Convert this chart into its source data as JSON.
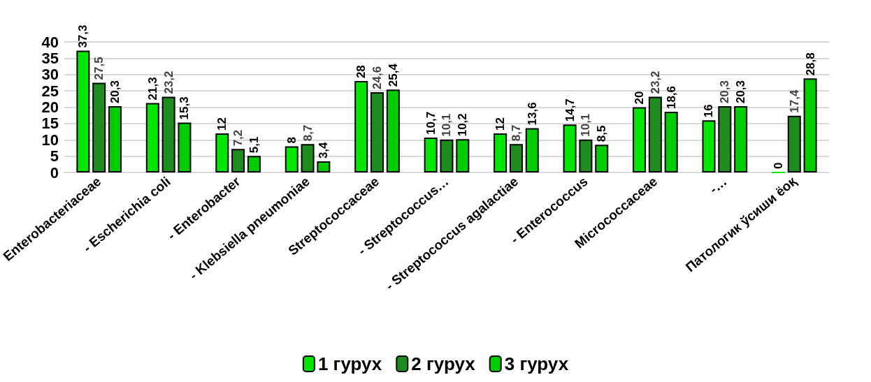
{
  "chart_data": {
    "type": "bar",
    "categories": [
      "Enterobacteriaceae",
      "- Escherichia coli",
      "- Enterobacter",
      "- Klebsiella pneumoniae",
      "Streptococcaceae",
      "- Streptococcus…",
      "- Streptococcus agalactiae",
      "- Enterococcus",
      "Micrococcaceae",
      "-…",
      "Патологик ўсиши ёоқ"
    ],
    "series": [
      {
        "name": "1 гурух",
        "color": "#00e600",
        "values": [
          37.3,
          21.3,
          12,
          8,
          28,
          10.7,
          12,
          14.7,
          20,
          16,
          0
        ],
        "value_labels": [
          "37,3",
          "21,3",
          "12",
          "8",
          "28",
          "10,7",
          "12",
          "14,7",
          "20",
          "16",
          "0"
        ]
      },
      {
        "name": "2 гурух",
        "color": "#1e8c1e",
        "values": [
          27.5,
          23.2,
          7.2,
          8.7,
          24.6,
          10.1,
          8.7,
          10.1,
          23.2,
          20.3,
          17.4
        ],
        "value_labels": [
          "27,5",
          "23,2",
          "7,2",
          "8,7",
          "24,6",
          "10,1",
          "8,7",
          "10,1",
          "23,2",
          "20,3",
          "17,4"
        ]
      },
      {
        "name": "3 гурух",
        "color": "#00cc00",
        "values": [
          20.3,
          15.3,
          5.1,
          3.4,
          25.4,
          10.2,
          13.6,
          8.5,
          18.6,
          20.3,
          28.8
        ],
        "value_labels": [
          "20,3",
          "15,3",
          "5,1",
          "3,4",
          "25,4",
          "10,2",
          "13,6",
          "8,5",
          "18,6",
          "20,3",
          "28,8"
        ]
      }
    ],
    "ylim": [
      0,
      40
    ],
    "yticks": [
      0,
      5,
      10,
      15,
      20,
      25,
      30,
      35,
      40
    ],
    "grid": "y",
    "legend": "bottom"
  }
}
